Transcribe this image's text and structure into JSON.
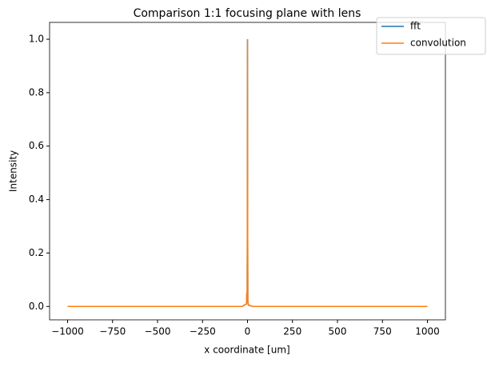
{
  "chart_data": {
    "type": "line",
    "title": "Comparison 1:1 focusing plane with lens",
    "x_label": "x coordinate [um]",
    "y_label": "Intensity",
    "x": [
      -1000,
      -30,
      -5,
      -4,
      -2,
      -1,
      0,
      1,
      2,
      4,
      5,
      30,
      1000
    ],
    "series": [
      {
        "name": "fft",
        "color": "#1f77b4",
        "values": [
          0,
          0,
          0.01,
          0.05,
          0.02,
          0.3,
          1.0,
          0.3,
          0.02,
          0.01,
          0.005,
          0,
          0
        ]
      },
      {
        "name": "convolution",
        "color": "#ff7f0e",
        "values": [
          0,
          0,
          0.01,
          0.05,
          0.02,
          0.3,
          1.0,
          0.3,
          0.02,
          0.01,
          0.005,
          0,
          0
        ]
      }
    ],
    "xlim": [
      -1100,
      1100
    ],
    "ylim": [
      -0.05,
      1.063
    ],
    "xticks": [
      {
        "value": -1000,
        "label": "−1000"
      },
      {
        "value": -750,
        "label": "−750"
      },
      {
        "value": -500,
        "label": "−500"
      },
      {
        "value": -250,
        "label": "−250"
      },
      0,
      250,
      500,
      750,
      1000
    ],
    "yticks": [
      {
        "value": 0,
        "label": "0.0"
      },
      0.2,
      0.4,
      0.6,
      0.8,
      {
        "value": 1,
        "label": "1.0"
      }
    ],
    "legend": "upper right"
  }
}
